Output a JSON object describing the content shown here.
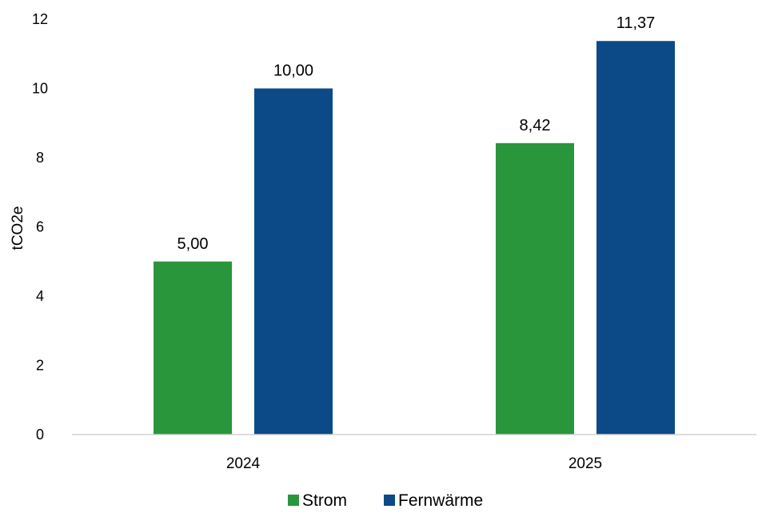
{
  "chart_data": {
    "type": "bar",
    "categories": [
      "2024",
      "2025"
    ],
    "series": [
      {
        "name": "Strom",
        "values": [
          5.0,
          8.42
        ],
        "labels": [
          "5,00",
          "8,42"
        ],
        "color": "#2a963c"
      },
      {
        "name": "Fernwärme",
        "values": [
          10.0,
          11.37
        ],
        "labels": [
          "10,00",
          "11,37"
        ],
        "color": "#0b4a86"
      }
    ],
    "title": "",
    "xlabel": "",
    "ylabel": "tCO2e",
    "ylim": [
      0,
      12
    ],
    "yticks": [
      "0",
      "2",
      "4",
      "6",
      "8",
      "10",
      "12"
    ],
    "grid": false,
    "legend": "bottom-center",
    "axis_color": "#d0d0d0"
  }
}
